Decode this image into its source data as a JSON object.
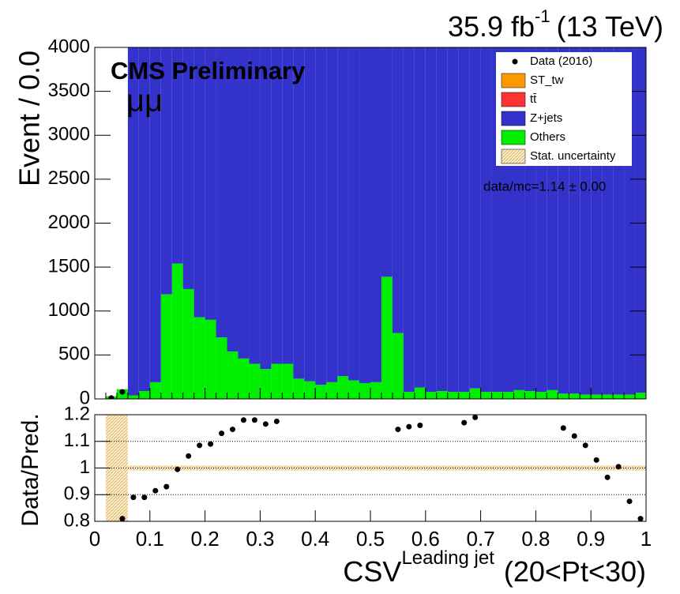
{
  "chart_data": [
    {
      "type": "histogram",
      "lumi": "35.9 fb",
      "lumi_exponent": "-1",
      "lumi_energy": "(13 TeV)",
      "label": "CMS Preliminary",
      "channel": "μμ",
      "annotation": "data/mc=1.14 ± 0.00",
      "y_label": "Event / 0.0",
      "bins": [
        0,
        0.02,
        0.04,
        0.06,
        0.08,
        0.1,
        0.12,
        0.14,
        0.16,
        0.18,
        0.2,
        0.22,
        0.24,
        0.26,
        0.28,
        0.3,
        0.32,
        0.34,
        0.36,
        0.38,
        0.4,
        0.42,
        0.44,
        0.46,
        0.48,
        0.5,
        0.52,
        0.54,
        0.56,
        0.58,
        0.6,
        0.62,
        0.64,
        0.66,
        0.68,
        0.7,
        0.72,
        0.74,
        0.76,
        0.78,
        0.8,
        0.82,
        0.84,
        0.86,
        0.88,
        0.9,
        0.92,
        0.94,
        0.96,
        0.98,
        1
      ],
      "series": [
        {
          "name": "Data (2016)",
          "color": "#000000",
          "style": "points",
          "values": [
            null,
            10,
            80,
            null,
            null,
            null,
            null,
            null,
            null,
            null,
            null,
            null,
            null,
            null,
            null,
            null,
            null,
            null,
            null,
            null,
            null,
            null,
            null,
            null,
            null,
            null,
            null,
            null,
            null,
            null,
            null,
            null,
            null,
            null,
            null,
            null,
            null,
            null,
            null,
            null,
            null,
            null,
            null,
            null,
            null,
            null,
            null,
            null,
            null,
            null
          ]
        },
        {
          "name": "ST_tw",
          "color": "#ff9900",
          "style": "stack"
        },
        {
          "name": "tt̄",
          "color": "#ff3333",
          "style": "stack"
        },
        {
          "name": "Z+jets",
          "color": "#3333cc",
          "style": "stack",
          "values": [
            0,
            0,
            0,
            5000,
            5000,
            5000,
            5000,
            5000,
            5000,
            5000,
            5000,
            5000,
            5000,
            5000,
            5000,
            5000,
            5000,
            5000,
            5000,
            5000,
            5000,
            5000,
            5000,
            5000,
            5000,
            5000,
            5000,
            5000,
            5000,
            5000,
            5000,
            5000,
            5000,
            5000,
            5000,
            5000,
            5000,
            5000,
            5000,
            5000,
            5000,
            5000,
            5000,
            5000,
            5000,
            5000,
            5000,
            5000,
            5000,
            5000
          ]
        },
        {
          "name": "Others",
          "color": "#00ee00",
          "style": "stack",
          "values": [
            0,
            30,
            110,
            40,
            90,
            190,
            1190,
            1540,
            1250,
            930,
            900,
            700,
            540,
            460,
            400,
            340,
            400,
            400,
            230,
            200,
            160,
            190,
            260,
            210,
            180,
            190,
            1390,
            750,
            80,
            130,
            80,
            90,
            80,
            80,
            120,
            80,
            80,
            80,
            100,
            90,
            80,
            100,
            60,
            60,
            50,
            50,
            50,
            50,
            50,
            70
          ]
        },
        {
          "name": "Stat. uncertainty",
          "color": "#f5d9a0",
          "style": "band"
        }
      ],
      "xlim": [
        0,
        1
      ],
      "ylim": [
        0,
        4000
      ],
      "yticks": [
        0,
        500,
        1000,
        1500,
        2000,
        2500,
        3000,
        3500,
        4000
      ]
    },
    {
      "type": "scatter",
      "y_label": "Data/Pred.",
      "x_label": "CSV",
      "x_label_sup": "Leading jet",
      "x_label_suffix": "(20<Pt<30)",
      "x": [
        0.05,
        0.07,
        0.09,
        0.11,
        0.13,
        0.15,
        0.17,
        0.19,
        0.21,
        0.23,
        0.25,
        0.27,
        0.29,
        0.31,
        0.33,
        0.55,
        0.57,
        0.59,
        0.67,
        0.69,
        0.85,
        0.87,
        0.89,
        0.91,
        0.93,
        0.95,
        0.97,
        0.99
      ],
      "values": [
        0.81,
        0.89,
        0.89,
        0.915,
        0.93,
        0.995,
        1.045,
        1.085,
        1.09,
        1.13,
        1.145,
        1.18,
        1.18,
        1.165,
        1.175,
        1.145,
        1.155,
        1.16,
        1.17,
        1.19,
        1.15,
        1.12,
        1.085,
        1.03,
        0.965,
        1.005,
        0.875,
        0.81
      ],
      "color": "#000000",
      "xlim": [
        0,
        1
      ],
      "ylim": [
        0.8,
        1.2
      ],
      "xticks": [
        0,
        0.1,
        0.2,
        0.3,
        0.4,
        0.5,
        0.6,
        0.7,
        0.8,
        0.9,
        1
      ],
      "yticks": [
        0.8,
        0.9,
        1,
        1.1,
        1.2
      ],
      "grid": true
    }
  ]
}
